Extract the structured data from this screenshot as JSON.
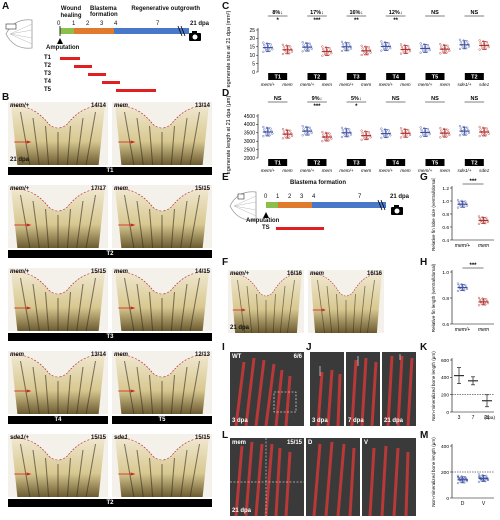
{
  "panel_labels": {
    "A": "A",
    "B": "B",
    "C": "C",
    "D": "D",
    "E": "E",
    "F": "F",
    "G": "G",
    "H": "H",
    "I": "I",
    "J": "J",
    "K": "K",
    "L": "L",
    "M": "M"
  },
  "timeline_a": {
    "stages": [
      "Wound healing",
      "Blastema formation",
      "Regenerative outgrowth"
    ],
    "ticks": [
      "0",
      "1",
      "2",
      "3",
      "4",
      "7"
    ],
    "end_label": "21 dpa",
    "amputation": "Amputation",
    "treatments": [
      "T1",
      "T2",
      "T3",
      "T4",
      "T5"
    ]
  },
  "timeline_e": {
    "stage": "Blastema formation",
    "ticks": [
      "0",
      "1",
      "2",
      "3",
      "4",
      "7"
    ],
    "end_label": "21 dpa",
    "amputation": "Amputation",
    "treatment": "TS"
  },
  "panel_b": {
    "rows": [
      {
        "left": {
          "genotype": "mem/+",
          "count": "14/14",
          "dpa": "21 dpa"
        },
        "right": {
          "genotype": "mem",
          "count": "13/14"
        },
        "bar": "T1"
      },
      {
        "left": {
          "genotype": "mem/+",
          "count": "17/17"
        },
        "right": {
          "genotype": "mem",
          "count": "15/15"
        },
        "bar": "T2"
      },
      {
        "left": {
          "genotype": "mem/+",
          "count": "15/15"
        },
        "right": {
          "genotype": "mem",
          "count": "14/15"
        },
        "bar": "T3"
      },
      {
        "left": {
          "genotype": "mem",
          "count": "13/14"
        },
        "right": {
          "genotype": "mem",
          "count": "12/13"
        },
        "bar_left": "T4",
        "bar_right": "T5"
      },
      {
        "left": {
          "genotype": "sde1/+",
          "count": "15/15"
        },
        "right": {
          "genotype": "sde1",
          "count": "15/15"
        },
        "bar": "T2"
      }
    ]
  },
  "panel_c": {
    "ylabel": "Regenerate size at 21 dpa (mm²)",
    "yticks": [
      "0",
      "5",
      "10",
      "15",
      "20",
      "25"
    ],
    "pct": [
      "8%↓",
      "17%↓",
      "16%↓",
      "12%↓",
      "NS",
      "NS"
    ],
    "sig": [
      "*",
      "***",
      "**",
      "**",
      "",
      ""
    ],
    "boxes": [
      "T1",
      "T2",
      "T3",
      "T4",
      "T5",
      "T2"
    ],
    "xticks": [
      "mem/+",
      "mem",
      "mem/+",
      "mem",
      "mem/+",
      "mem",
      "mem/+",
      "mem",
      "mem/+",
      "mem",
      "sde1/+",
      "sde1"
    ]
  },
  "panel_d": {
    "ylabel": "Regenerate length at 21 dpa (μm)",
    "yticks": [
      "2000",
      "2500",
      "3000",
      "3500",
      "4000",
      "4500"
    ],
    "pct": [
      "NS",
      "9%↓",
      "5%↓",
      "NS",
      "NS",
      "NS"
    ],
    "sig": [
      "",
      "***",
      "*",
      "",
      "",
      ""
    ],
    "boxes": [
      "T1",
      "T2",
      "T3",
      "T4",
      "T5",
      "T2"
    ],
    "xticks": [
      "mem/+",
      "mem",
      "mem/+",
      "mem",
      "mem/+",
      "mem",
      "mem/+",
      "mem",
      "mem/+",
      "mem",
      "sde1/+",
      "sde1"
    ]
  },
  "panel_f": {
    "left": {
      "genotype": "mem/+",
      "count": "16/16",
      "dpa": "21 dpa"
    },
    "right": {
      "genotype": "mem",
      "count": "16/16"
    }
  },
  "panel_g": {
    "ylabel": "Relative fin lobe size (ventral/dorsal)",
    "yticks": [
      "0.4",
      "0.6",
      "0.8",
      "1.0",
      "1.2"
    ],
    "sig": "***",
    "xticks": [
      "mem/+",
      "mem"
    ]
  },
  "panel_h": {
    "ylabel": "Relative fin length (ventral/dorsal)",
    "yticks": [
      "0.6",
      "0.8",
      "1.0"
    ],
    "sig": "***",
    "xticks": [
      "mem/+",
      "mem"
    ]
  },
  "panel_i": {
    "genotype": "WT",
    "count": "6/6",
    "dpa": "3 dpa"
  },
  "panel_j": {
    "labels": [
      "3 dpa",
      "7 dpa",
      "21 dpa"
    ]
  },
  "panel_k": {
    "ylabel": "Non-mineralized bone length (μm)",
    "yticks": [
      "0",
      "200",
      "400",
      "600"
    ],
    "xticks": [
      "3",
      "7",
      "21"
    ],
    "xunit": "(dpa)"
  },
  "panel_l": {
    "genotype": "mem",
    "count": "15/15",
    "dpa": "21 dpa",
    "sub": [
      "D",
      "V"
    ]
  },
  "panel_m": {
    "ylabel": "Non-mineralized bone length (μm)",
    "yticks": [
      "0",
      "200",
      "400"
    ],
    "xticks": [
      "D",
      "V"
    ]
  },
  "colors": {
    "control": "#3b4fa0",
    "mutant": "#b0302c",
    "wound": "#8bbf4b",
    "blastema": "#e07a2c",
    "outgrowth": "#4a78c8",
    "treatment": "#e02020"
  }
}
